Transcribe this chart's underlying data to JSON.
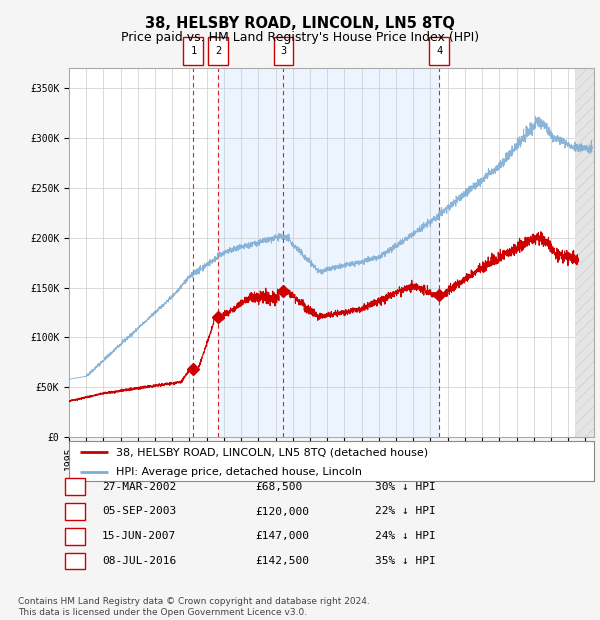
{
  "title": "38, HELSBY ROAD, LINCOLN, LN5 8TQ",
  "subtitle": "Price paid vs. HM Land Registry's House Price Index (HPI)",
  "ylabel_ticks": [
    "£0",
    "£50K",
    "£100K",
    "£150K",
    "£200K",
    "£250K",
    "£300K",
    "£350K"
  ],
  "ytick_values": [
    0,
    50000,
    100000,
    150000,
    200000,
    250000,
    300000,
    350000
  ],
  "ylim": [
    0,
    370000
  ],
  "xlim_start": 1995.0,
  "xlim_end": 2025.5,
  "hpi_color": "#7eadd4",
  "price_color": "#cc0000",
  "fig_bg": "#f5f5f5",
  "plot_bg": "#ffffff",
  "sale_dates": [
    2002.23,
    2003.68,
    2007.46,
    2016.52
  ],
  "sale_prices": [
    68500,
    120000,
    147000,
    142500
  ],
  "sale_labels": [
    "1",
    "2",
    "3",
    "4"
  ],
  "dashed_line_color": "#cc0000",
  "shaded_region_color": "#ddeeff",
  "shaded_region_alpha": 0.55,
  "hatch_region_start": 2024.42,
  "hatch_region_end": 2025.5,
  "legend_label_price": "38, HELSBY ROAD, LINCOLN, LN5 8TQ (detached house)",
  "legend_label_hpi": "HPI: Average price, detached house, Lincoln",
  "table_rows": [
    [
      "1",
      "27-MAR-2002",
      "£68,500",
      "30% ↓ HPI"
    ],
    [
      "2",
      "05-SEP-2003",
      "£120,000",
      "22% ↓ HPI"
    ],
    [
      "3",
      "15-JUN-2007",
      "£147,000",
      "24% ↓ HPI"
    ],
    [
      "4",
      "08-JUL-2016",
      "£142,500",
      "35% ↓ HPI"
    ]
  ],
  "footer": "Contains HM Land Registry data © Crown copyright and database right 2024.\nThis data is licensed under the Open Government Licence v3.0.",
  "title_fontsize": 10.5,
  "subtitle_fontsize": 9,
  "tick_fontsize": 7,
  "legend_fontsize": 8,
  "table_fontsize": 8,
  "footer_fontsize": 6.5
}
